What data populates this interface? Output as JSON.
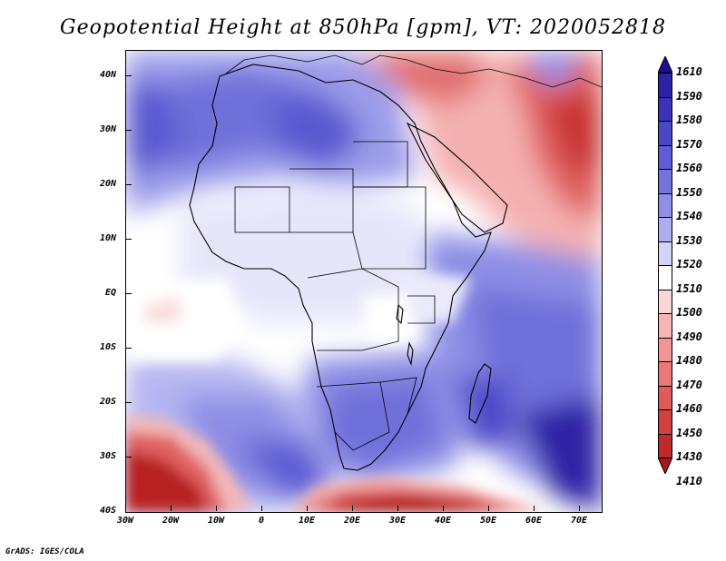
{
  "title": "Geopotential Height at 850hPa [gpm], VT: 2020052818",
  "credit": "GrADS: IGES/COLA",
  "map": {
    "region": "Africa",
    "lat_labels": [
      "40N",
      "30N",
      "20N",
      "10N",
      "EQ",
      "10S",
      "20S",
      "30S",
      "40S"
    ],
    "lon_labels": [
      "30W",
      "20W",
      "10W",
      "0",
      "10E",
      "20E",
      "30E",
      "40E",
      "50E",
      "60E",
      "70E"
    ]
  },
  "colorbar": {
    "labels": [
      "1610",
      "1590",
      "1580",
      "1570",
      "1560",
      "1550",
      "1540",
      "1530",
      "1520",
      "1510",
      "1500",
      "1490",
      "1480",
      "1470",
      "1460",
      "1450",
      "1430",
      "1410"
    ],
    "colors": [
      "#1d1090",
      "#2d22a5",
      "#3b32b8",
      "#4c46c8",
      "#5f5dd4",
      "#7574dd",
      "#8e8ee6",
      "#aeaeef",
      "#d3d3f7",
      "#ffffff",
      "#fbd6d6",
      "#f6b4b4",
      "#f09696",
      "#ea7878",
      "#e05a5a",
      "#d24040",
      "#c02a2a",
      "#a81818"
    ]
  }
}
